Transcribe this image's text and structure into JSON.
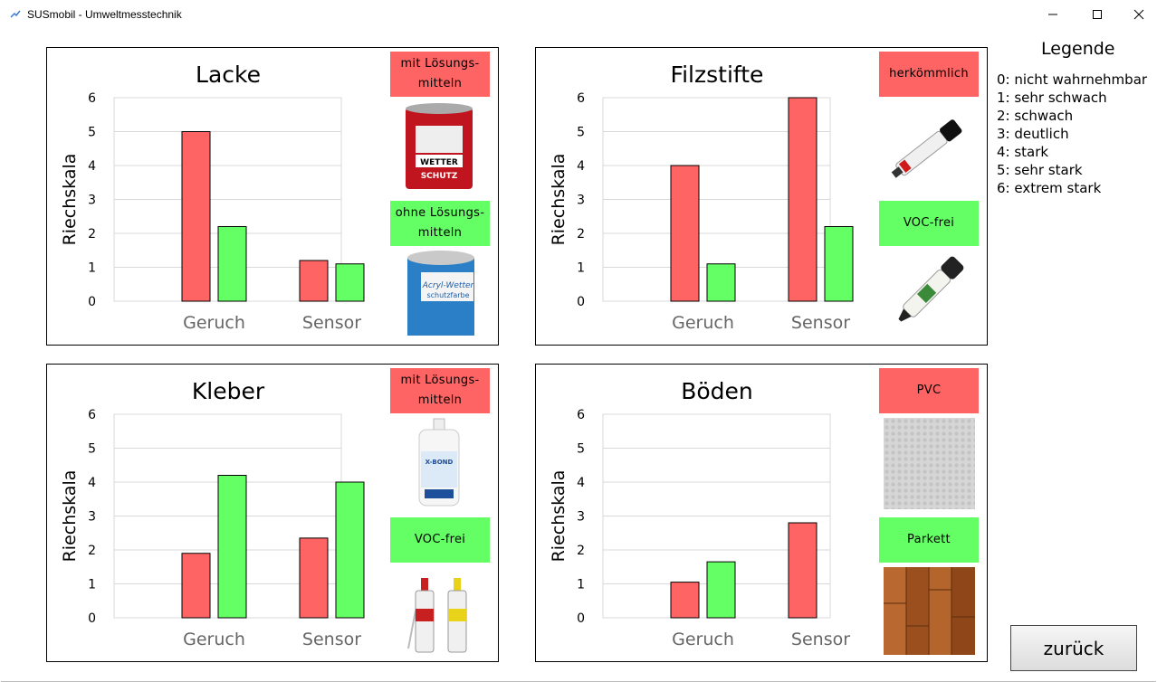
{
  "window": {
    "title": "SUSmobil - Umweltmesstechnik",
    "minimize_glyph": "—",
    "maximize_glyph": "☐",
    "close_glyph": "✕"
  },
  "colors": {
    "geruch_bar": "#ff6464",
    "sensor_bar": "#64ff64",
    "badge_red": "#ff6464",
    "badge_green": "#64ff64"
  },
  "panels": [
    {
      "title": "Lacke",
      "badges": [
        {
          "line1": "mit Lösungs-",
          "line2": "mitteln",
          "color": "red"
        },
        {
          "line1": "ohne Lösungs-",
          "line2": "mitteln",
          "color": "green"
        }
      ]
    },
    {
      "title": "Filzstifte",
      "badges": [
        {
          "line1": "herkömmlich",
          "line2": "",
          "color": "red"
        },
        {
          "line1": "VOC-frei",
          "line2": "",
          "color": "green"
        }
      ]
    },
    {
      "title": "Kleber",
      "badges": [
        {
          "line1": "mit Lösungs-",
          "line2": "mitteln",
          "color": "red"
        },
        {
          "line1": "VOC-frei",
          "line2": "",
          "color": "green"
        }
      ]
    },
    {
      "title": "Böden",
      "badges": [
        {
          "line1": "PVC",
          "line2": "",
          "color": "red"
        },
        {
          "line1": "Parkett",
          "line2": "",
          "color": "green"
        }
      ]
    }
  ],
  "chart_data": [
    {
      "type": "bar",
      "title": "Lacke",
      "categories": [
        "Geruch",
        "Sensor"
      ],
      "ylabel": "Riechskala",
      "ylim": [
        0,
        6
      ],
      "yticks": [
        "0",
        "1",
        "2",
        "3",
        "4",
        "5",
        "6"
      ],
      "grid": true,
      "series": [
        {
          "name": "mit Lösungsmitteln",
          "values": [
            5.0,
            1.2
          ]
        },
        {
          "name": "ohne Lösungsmitteln",
          "values": [
            2.2,
            1.1
          ]
        }
      ]
    },
    {
      "type": "bar",
      "title": "Filzstifte",
      "categories": [
        "Geruch",
        "Sensor"
      ],
      "ylabel": "Riechskala",
      "ylim": [
        0,
        6
      ],
      "yticks": [
        "0",
        "1",
        "2",
        "3",
        "4",
        "5",
        "6"
      ],
      "grid": true,
      "series": [
        {
          "name": "herkömmlich",
          "values": [
            4.0,
            6.0
          ]
        },
        {
          "name": "VOC-frei",
          "values": [
            1.1,
            2.2
          ]
        }
      ]
    },
    {
      "type": "bar",
      "title": "Kleber",
      "categories": [
        "Geruch",
        "Sensor"
      ],
      "ylabel": "Riechskala",
      "ylim": [
        0,
        6
      ],
      "yticks": [
        "0",
        "1",
        "2",
        "3",
        "4",
        "5",
        "6"
      ],
      "grid": true,
      "series": [
        {
          "name": "mit Lösungsmitteln",
          "values": [
            1.9,
            2.35
          ]
        },
        {
          "name": "VOC-frei",
          "values": [
            4.2,
            4.0
          ]
        }
      ]
    },
    {
      "type": "bar",
      "title": "Böden",
      "categories": [
        "Geruch",
        "Sensor"
      ],
      "ylabel": "Riechskala",
      "ylim": [
        0,
        6
      ],
      "yticks": [
        "0",
        "1",
        "2",
        "3",
        "4",
        "5",
        "6"
      ],
      "grid": true,
      "series": [
        {
          "name": "PVC",
          "values": [
            1.05,
            2.8
          ]
        },
        {
          "name": "Parkett",
          "values": [
            1.65,
            0.0
          ]
        }
      ]
    }
  ],
  "legend": {
    "title": "Legende",
    "items": [
      "0: nicht wahrnehmbar",
      "1: sehr schwach",
      "2: schwach",
      "3: deutlich",
      "4: stark",
      "5: sehr stark",
      "6: extrem stark"
    ]
  },
  "back_button": {
    "label": "zurück"
  },
  "products": [
    {
      "top_icon": "wetterschutz-paint-can-image",
      "bottom_icon": "acryl-paint-can-image"
    },
    {
      "top_icon": "red-marker-image",
      "bottom_icon": "voc-free-marker-image"
    },
    {
      "top_icon": "glue-bottle-image",
      "bottom_icon": "glue-tubes-image"
    },
    {
      "top_icon": "pvc-floor-texture",
      "bottom_icon": "parquet-floor-texture"
    }
  ]
}
